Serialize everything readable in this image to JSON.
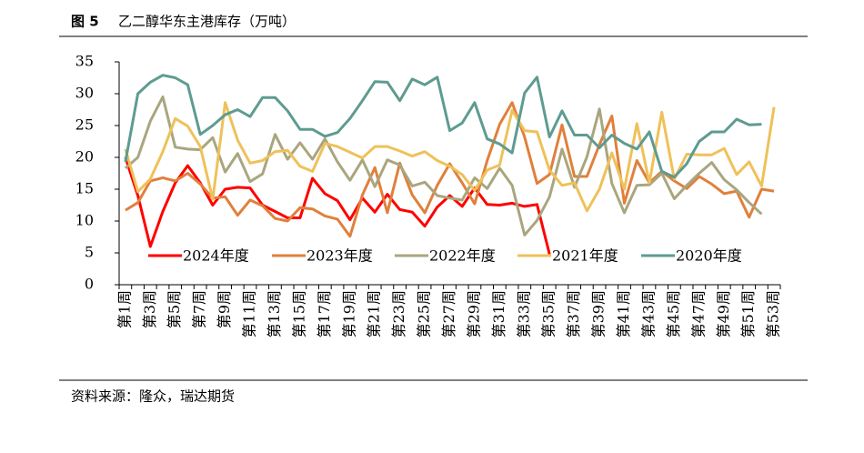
{
  "chart_data": {
    "type": "line",
    "figure_label": "图 5",
    "title": "乙二醇华东主港库存（万吨）",
    "source": "资料来源：隆众，瑞达期货",
    "categories": [
      "第1周",
      null,
      "第3周",
      null,
      "第5周",
      null,
      "第7周",
      null,
      "第9周",
      null,
      "第11周",
      null,
      "第13周",
      null,
      "第15周",
      null,
      "第17周",
      null,
      "第19周",
      null,
      "第21周",
      null,
      "第23周",
      null,
      "第25周",
      null,
      "第27周",
      null,
      "第29周",
      null,
      "第31周",
      null,
      "第33周",
      null,
      "第35周",
      null,
      "第37周",
      null,
      "第39周",
      null,
      "第41周",
      null,
      "第43周",
      null,
      "第45周",
      null,
      "第47周",
      null,
      "第49周",
      null,
      "第51周",
      null,
      "第53周"
    ],
    "ylim": [
      0,
      35
    ],
    "yticks": [
      0,
      5,
      10,
      15,
      20,
      25,
      30,
      35
    ],
    "grid": false,
    "legend": "inside-bottom",
    "series": [
      {
        "name": "2024年度",
        "color": "#ff0000",
        "values": [
          20,
          14,
          6,
          11.5,
          16,
          18.7,
          16,
          12.5,
          15,
          15.3,
          15.2,
          12.5,
          11.5,
          10.5,
          10.5,
          16.7,
          14.3,
          13.2,
          10.2,
          13.6,
          11.4,
          14.2,
          11.8,
          11.4,
          9.2,
          12.2,
          14,
          12.3,
          15.2,
          12.6,
          12.5,
          12.8,
          12.3,
          12.6,
          4.8,
          null,
          null,
          null,
          null,
          null,
          null,
          null,
          null,
          null,
          null,
          null,
          null,
          null,
          null,
          null,
          null,
          null,
          null
        ]
      },
      {
        "name": "2023年度",
        "color": "#e0803c",
        "values": [
          11.7,
          12.9,
          16.3,
          16.8,
          16.3,
          17.5,
          15.8,
          13.6,
          13.8,
          10.9,
          13.3,
          12.4,
          10.4,
          10,
          12.1,
          11.9,
          10.8,
          10.3,
          7.6,
          14.1,
          18.4,
          11.3,
          19.1,
          14.1,
          11.3,
          15.6,
          19,
          16,
          12.7,
          19.5,
          25.2,
          28.6,
          23.2,
          15.9,
          17.3,
          25.1,
          17,
          17,
          22,
          26.5,
          12.8,
          19.5,
          16,
          17.8,
          16.3,
          15.1,
          17,
          15.8,
          14.3,
          14.7,
          10.6,
          15,
          14.7
        ]
      },
      {
        "name": "2022年度",
        "color": "#a9a67e",
        "values": [
          18.3,
          20,
          25.7,
          29.5,
          21.6,
          21.3,
          21.2,
          23.1,
          17.7,
          20.6,
          16.2,
          17.4,
          23.6,
          19.7,
          22.3,
          19.7,
          22.9,
          19.3,
          16.4,
          19.6,
          15.4,
          19.6,
          18.8,
          15.5,
          16.1,
          14,
          13.6,
          13.3,
          16.8,
          15.1,
          18.3,
          15.6,
          7.8,
          10.1,
          13.8,
          21.3,
          15.3,
          20.1,
          27.6,
          15.9,
          11.3,
          15.6,
          15.7,
          17.5,
          13.5,
          15.6,
          17.5,
          19.2,
          16.5,
          14.9,
          12.9,
          11.1,
          null
        ]
      },
      {
        "name": "2021年度",
        "color": "#efc15a",
        "values": [
          21.3,
          14.6,
          16.6,
          20.9,
          26.1,
          24.9,
          21.7,
          13.4,
          28.6,
          22.7,
          19.1,
          19.5,
          20.9,
          21.1,
          18.6,
          17.8,
          22.2,
          21.7,
          20.8,
          19.9,
          21.7,
          21.7,
          21,
          20.2,
          20.9,
          19.5,
          18.6,
          17.3,
          14.8,
          18,
          18.8,
          27.4,
          24.2,
          24,
          18,
          15.6,
          16,
          11.6,
          15,
          20.7,
          15,
          25.3,
          16,
          27.1,
          16.6,
          20.5,
          20.4,
          20.4,
          21.4,
          17.3,
          19.3,
          15.5,
          27.9
        ]
      },
      {
        "name": "2020年度",
        "color": "#5e9b91",
        "values": [
          19.3,
          30,
          31.8,
          32.9,
          32.5,
          31.4,
          23.6,
          25,
          26.7,
          27.5,
          26.4,
          29.4,
          29.4,
          27.3,
          24.4,
          24.4,
          23.3,
          23.9,
          26.1,
          28.9,
          31.9,
          31.8,
          28.9,
          32.3,
          31.4,
          32.6,
          24.2,
          25.4,
          28.6,
          22.9,
          22.1,
          20.7,
          30.1,
          32.6,
          23.2,
          27.3,
          23.5,
          23.5,
          21.5,
          23.5,
          22.2,
          21.3,
          24,
          17.8,
          16.9,
          19,
          22.5,
          24,
          24,
          26,
          25.1,
          25.2,
          null
        ]
      }
    ]
  }
}
